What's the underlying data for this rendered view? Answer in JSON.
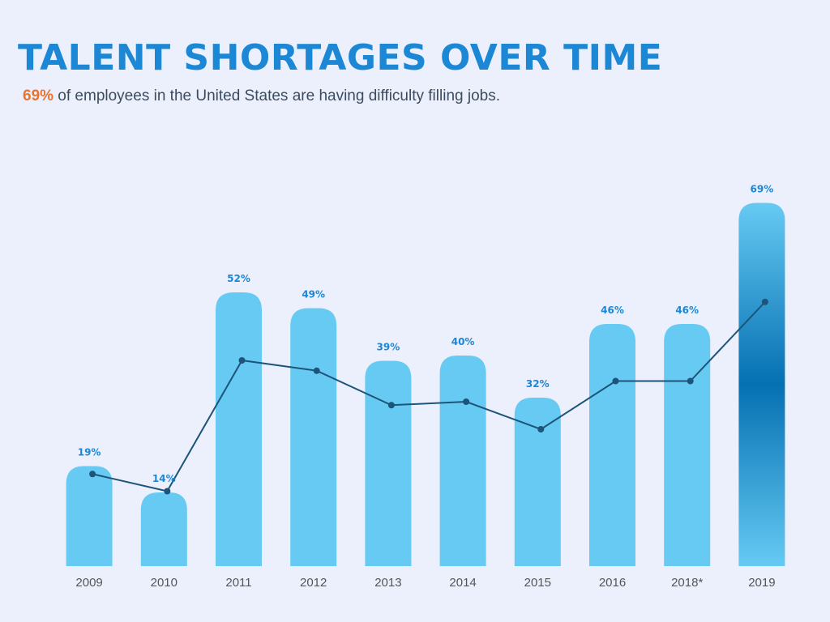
{
  "header": {
    "title": "TALENT SHORTAGES OVER TIME",
    "subtitle_highlight": "69%",
    "subtitle_rest": " of employees in the United States are having difficulty filling jobs."
  },
  "colors": {
    "title": "#1b87d5",
    "subtitle_highlight": "#e8742f",
    "bar": "#66caf3",
    "bar_highlight_light": "#66caf3",
    "bar_highlight_dark": "#0570b2",
    "bar_label": "#1b87d5",
    "line": "#1d5479",
    "tick_label": "#555555",
    "background": "#ecf0fc"
  },
  "chart_data": {
    "type": "bar",
    "categories": [
      "2009",
      "2010",
      "2011",
      "2012",
      "2013",
      "2014",
      "2015",
      "2016",
      "2018*",
      "2019"
    ],
    "series": [
      {
        "values": [
          19,
          14,
          52,
          49,
          39,
          40,
          32,
          46,
          46,
          69
        ],
        "labels": [
          "19%",
          "14%",
          "52%",
          "49%",
          "39%",
          "40%",
          "32%",
          "46%",
          "46%",
          "69%"
        ]
      }
    ],
    "overlay_line": true,
    "highlighted_category": "2019",
    "title": "TALENT SHORTAGES OVER TIME",
    "xlabel": "",
    "ylabel": "",
    "ylim": [
      0,
      75
    ],
    "grid": false,
    "legend": "none"
  }
}
